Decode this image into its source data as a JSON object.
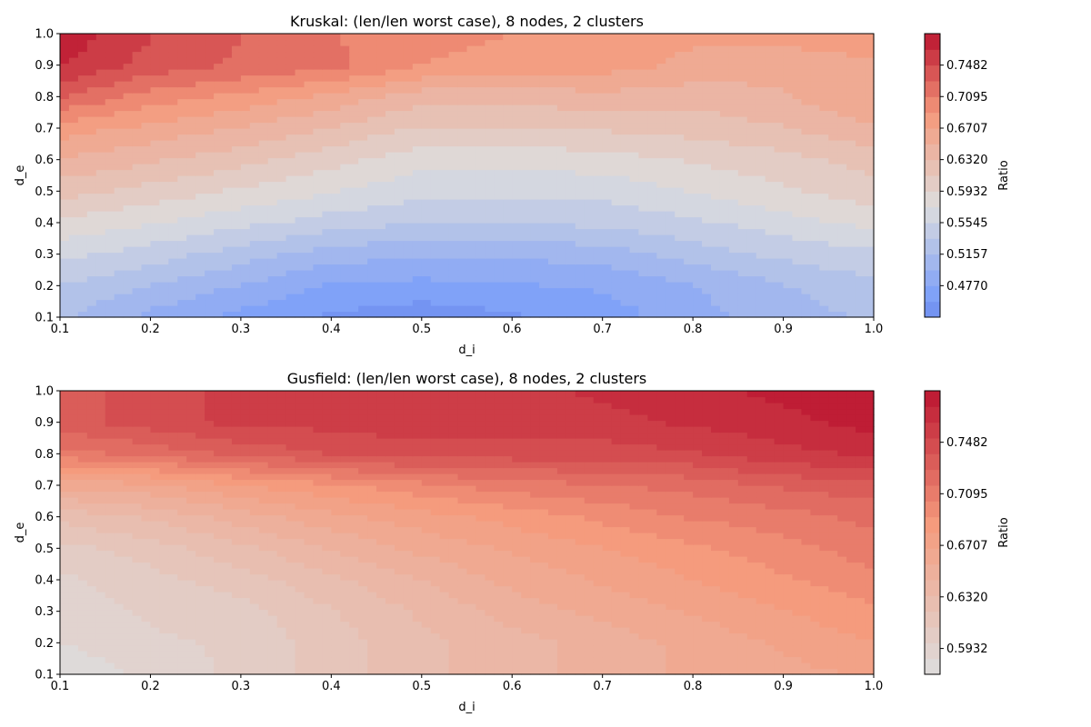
{
  "chart_data": [
    {
      "type": "contour",
      "title": "Kruskal: (len/len worst case), 8 nodes, 2 clusters",
      "xlabel": "d_i",
      "ylabel": "d_e",
      "xlim": [
        0.1,
        1.0
      ],
      "ylim": [
        0.1,
        1.0
      ],
      "x_ticks": [
        "0.1",
        "0.2",
        "0.3",
        "0.4",
        "0.5",
        "0.6",
        "0.7",
        "0.8",
        "0.9",
        "1.0"
      ],
      "y_ticks": [
        "0.1",
        "0.2",
        "0.3",
        "0.4",
        "0.5",
        "0.6",
        "0.7",
        "0.8",
        "0.9",
        "1.0"
      ],
      "colormap": "coolwarm",
      "x": [
        0.1,
        0.2,
        0.3,
        0.4,
        0.5,
        0.6,
        0.7,
        0.8,
        0.9,
        1.0
      ],
      "y": [
        0.1,
        0.2,
        0.3,
        0.4,
        0.5,
        0.6,
        0.7,
        0.8,
        0.9,
        1.0
      ],
      "z": [
        [
          0.52,
          0.49,
          0.47,
          0.455,
          0.445,
          0.455,
          0.465,
          0.49,
          0.505,
          0.52
        ],
        [
          0.535,
          0.515,
          0.495,
          0.475,
          0.47,
          0.475,
          0.48,
          0.495,
          0.515,
          0.53
        ],
        [
          0.56,
          0.545,
          0.525,
          0.505,
          0.5,
          0.5,
          0.505,
          0.525,
          0.54,
          0.55
        ],
        [
          0.59,
          0.575,
          0.56,
          0.545,
          0.535,
          0.535,
          0.54,
          0.55,
          0.565,
          0.58
        ],
        [
          0.62,
          0.605,
          0.59,
          0.575,
          0.56,
          0.56,
          0.56,
          0.575,
          0.59,
          0.605
        ],
        [
          0.65,
          0.635,
          0.62,
          0.6,
          0.58,
          0.58,
          0.585,
          0.595,
          0.605,
          0.62
        ],
        [
          0.68,
          0.665,
          0.65,
          0.63,
          0.61,
          0.61,
          0.615,
          0.62,
          0.63,
          0.65
        ],
        [
          0.73,
          0.7,
          0.685,
          0.665,
          0.64,
          0.64,
          0.645,
          0.64,
          0.65,
          0.67
        ],
        [
          0.77,
          0.74,
          0.725,
          0.715,
          0.69,
          0.68,
          0.68,
          0.665,
          0.655,
          0.665
        ],
        [
          0.78,
          0.75,
          0.73,
          0.71,
          0.7,
          0.69,
          0.68,
          0.675,
          0.68,
          0.69
        ]
      ],
      "colorbar": {
        "label": "Ratio",
        "ticks": [
          "0.4770",
          "0.5157",
          "0.5545",
          "0.5932",
          "0.6320",
          "0.6707",
          "0.7095",
          "0.7482"
        ],
        "range": [
          0.4383,
          0.7869
        ]
      }
    },
    {
      "type": "contour",
      "title": "Gusfield: (len/len worst case), 8 nodes, 2 clusters",
      "xlabel": "d_i",
      "ylabel": "d_e",
      "xlim": [
        0.1,
        1.0
      ],
      "ylim": [
        0.1,
        1.0
      ],
      "x_ticks": [
        "0.1",
        "0.2",
        "0.3",
        "0.4",
        "0.5",
        "0.6",
        "0.7",
        "0.8",
        "0.9",
        "1.0"
      ],
      "y_ticks": [
        "0.1",
        "0.2",
        "0.3",
        "0.4",
        "0.5",
        "0.6",
        "0.7",
        "0.8",
        "0.9",
        "1.0"
      ],
      "colormap": "coolwarm",
      "x": [
        0.1,
        0.2,
        0.3,
        0.4,
        0.5,
        0.6,
        0.7,
        0.8,
        0.9,
        1.0
      ],
      "y": [
        0.1,
        0.2,
        0.3,
        0.4,
        0.5,
        0.6,
        0.7,
        0.8,
        0.9,
        1.0
      ],
      "z": [
        [
          0.575,
          0.59,
          0.6,
          0.615,
          0.63,
          0.64,
          0.65,
          0.66,
          0.665,
          0.67
        ],
        [
          0.585,
          0.595,
          0.6,
          0.615,
          0.63,
          0.64,
          0.65,
          0.66,
          0.67,
          0.68
        ],
        [
          0.59,
          0.6,
          0.605,
          0.62,
          0.635,
          0.65,
          0.66,
          0.67,
          0.68,
          0.69
        ],
        [
          0.595,
          0.605,
          0.615,
          0.63,
          0.645,
          0.66,
          0.67,
          0.68,
          0.69,
          0.7
        ],
        [
          0.605,
          0.615,
          0.63,
          0.645,
          0.66,
          0.67,
          0.68,
          0.69,
          0.7,
          0.71
        ],
        [
          0.625,
          0.635,
          0.65,
          0.665,
          0.675,
          0.685,
          0.695,
          0.705,
          0.71,
          0.72
        ],
        [
          0.66,
          0.665,
          0.68,
          0.69,
          0.7,
          0.71,
          0.715,
          0.72,
          0.73,
          0.735
        ],
        [
          0.71,
          0.72,
          0.73,
          0.74,
          0.745,
          0.745,
          0.745,
          0.75,
          0.76,
          0.765
        ],
        [
          0.735,
          0.745,
          0.755,
          0.755,
          0.76,
          0.76,
          0.76,
          0.765,
          0.77,
          0.78
        ],
        [
          0.735,
          0.745,
          0.755,
          0.76,
          0.76,
          0.76,
          0.765,
          0.77,
          0.78,
          0.79
        ]
      ],
      "colorbar": {
        "label": "Ratio",
        "ticks": [
          "0.5932",
          "0.6320",
          "0.6707",
          "0.7095",
          "0.7482"
        ],
        "range": [
          0.5738,
          0.7869
        ]
      }
    }
  ]
}
